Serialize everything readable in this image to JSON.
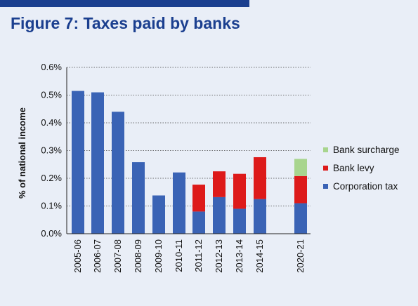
{
  "figure": {
    "title": "Figure 7: Taxes paid by banks"
  },
  "colors": {
    "title": "#1b3f8f",
    "background": "#e9eef7",
    "corporation_tax": "#3a63b5",
    "bank_levy": "#dd1a1a",
    "bank_surcharge": "#a8d58e"
  },
  "chart_data": {
    "type": "bar",
    "stacked": true,
    "categories": [
      "2005-06",
      "2006-07",
      "2007-08",
      "2008-09",
      "2009-10",
      "2010-11",
      "2011-12",
      "2012-13",
      "2013-14",
      "2014-15",
      "2020-21"
    ],
    "series": [
      {
        "name": "Corporation tax",
        "values": [
          0.515,
          0.51,
          0.44,
          0.258,
          0.138,
          0.221,
          0.08,
          0.132,
          0.09,
          0.125,
          0.11
        ]
      },
      {
        "name": "Bank levy",
        "values": [
          0,
          0,
          0,
          0,
          0,
          0,
          0.097,
          0.093,
          0.126,
          0.151,
          0.098
        ]
      },
      {
        "name": "Bank surcharge",
        "values": [
          0,
          0,
          0,
          0,
          0,
          0,
          0,
          0,
          0,
          0,
          0.062
        ]
      }
    ],
    "ylabel": "% of national income",
    "xlabel": "",
    "ylim": [
      0,
      0.6
    ],
    "yticks": [
      "0.0%",
      "0.1%",
      "0.2%",
      "0.3%",
      "0.4%",
      "0.5%",
      "0.6%"
    ],
    "grid": "horizontal dotted",
    "legend_position": "right",
    "legend_order": [
      "Bank surcharge",
      "Bank levy",
      "Corporation tax"
    ]
  }
}
